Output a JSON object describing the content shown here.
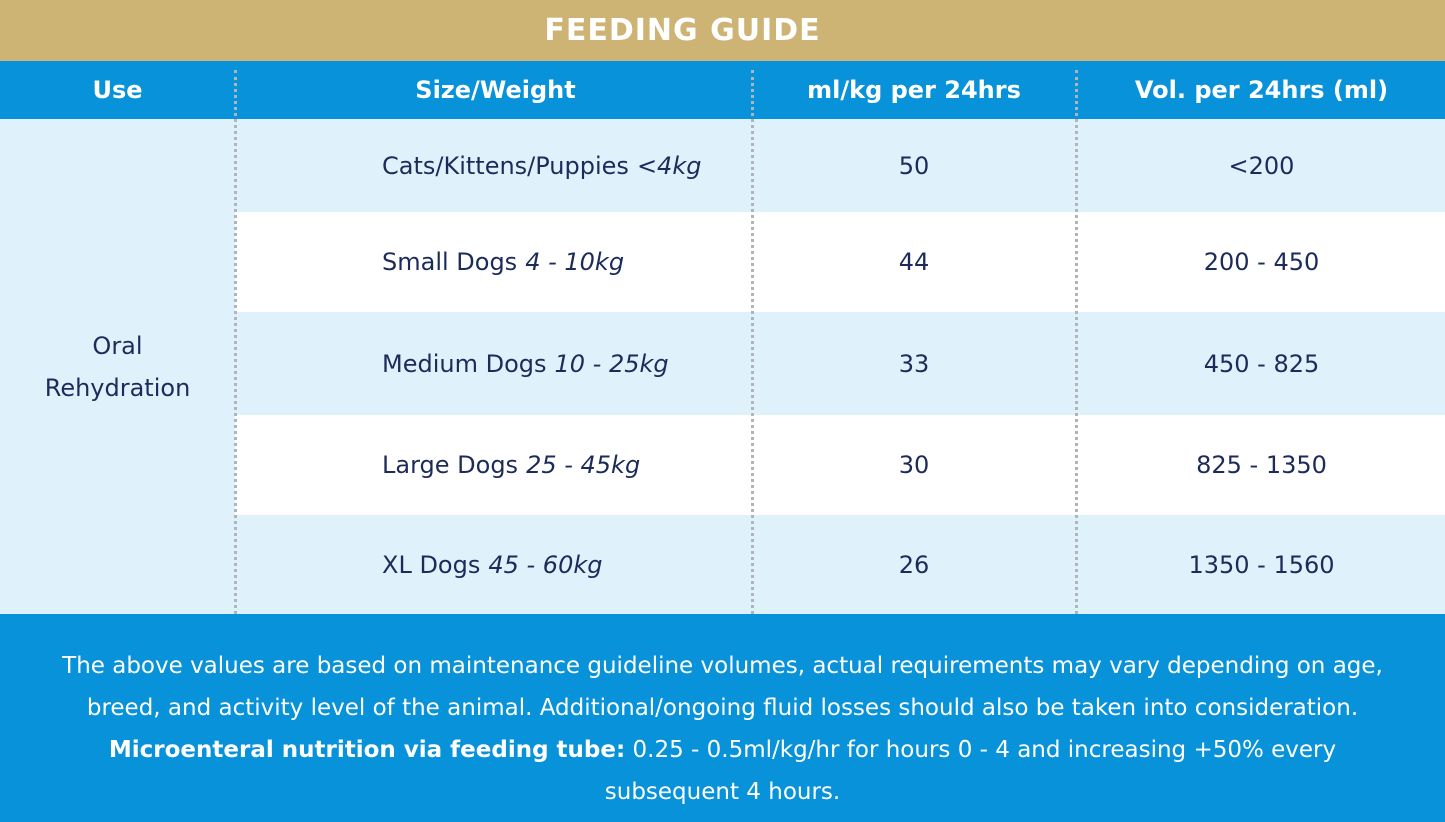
{
  "title": "FEEDING GUIDE",
  "columns": {
    "use": "Use",
    "size": "Size/Weight",
    "rate": "ml/kg per 24hrs",
    "volume": "Vol. per 24hrs (ml)"
  },
  "use_label": "Oral\nRehydration",
  "rows": [
    {
      "animal": "Cats/Kittens/Puppies",
      "weight": "<4kg",
      "rate": "50",
      "volume": "<200"
    },
    {
      "animal": "Small Dogs",
      "weight": "4 - 10kg",
      "rate": "44",
      "volume": "200 - 450"
    },
    {
      "animal": "Medium Dogs",
      "weight": "10 - 25kg",
      "rate": "33",
      "volume": "450 - 825"
    },
    {
      "animal": "Large Dogs",
      "weight": "25 - 45kg",
      "rate": "30",
      "volume": "825 - 1350"
    },
    {
      "animal": "XL Dogs",
      "weight": "45 - 60kg",
      "rate": "26",
      "volume": "1350 - 1560"
    }
  ],
  "footer": {
    "line1": "The above values are based on maintenance guideline volumes, actual requirements may vary depending on age,",
    "line2": "breed, and activity level of the animal. Additional/ongoing fluid losses should also be taken into consideration.",
    "bold_label": "Microenteral nutrition via feeding tube:",
    "line3_rest": " 0.25 - 0.5ml/kg/hr for hours 0 - 4 and increasing +50% every",
    "line4": "subsequent 4 hours."
  }
}
